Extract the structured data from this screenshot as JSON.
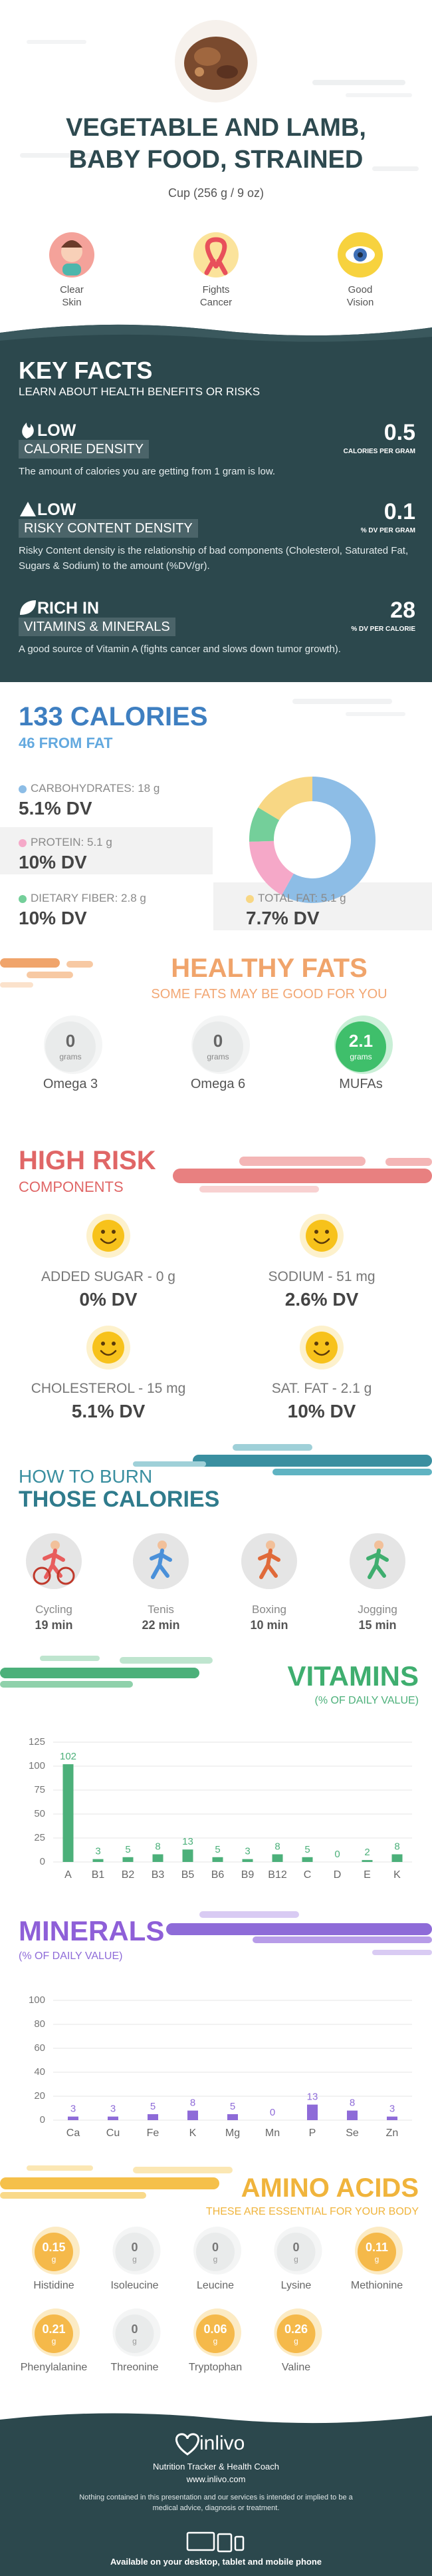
{
  "header": {
    "title": "VEGETABLE AND LAMB, BABY FOOD, STRAINED",
    "serving": "Cup (256 g / 9 oz)"
  },
  "benefits": [
    "Clear Skin",
    "Fights Cancer",
    "Good Vision"
  ],
  "key_facts": {
    "title": "KEY FACTS",
    "subtitle": "LEARN ABOUT HEALTH BENEFITS OR RISKS",
    "items": [
      {
        "level": "LOW",
        "label": "CALORIE DENSITY",
        "value": 0.5,
        "unit": "CALORIES PER GRAM",
        "description": "The amount of calories you are getting from 1 gram is low."
      },
      {
        "level": "LOW",
        "label": "RISKY CONTENT DENSITY",
        "value": 0.1,
        "unit": "% DV PER GRAM",
        "description": "Risky Content density is the relationship of bad components (Cholesterol, Saturated Fat, Sugars & Sodium) to the amount (%DV/gr)."
      },
      {
        "level": "RICH IN",
        "label": "VITAMINS & MINERALS",
        "value": 28,
        "unit": "% DV PER CALORIE",
        "description": "A good source of Vitamin A (fights cancer and slows down tumor growth)."
      }
    ]
  },
  "calories": {
    "title": "133 CALORIES",
    "subtitle": "46 FROM FAT"
  },
  "chart_data": [
    {
      "type": "pie",
      "categories": [
        "CARBOHYDRATES: 18 g",
        "PROTEIN: 5.1 g",
        "DIETARY FIBER: 2.8 g",
        "TOTAL FAT: 5.1 g"
      ],
      "values": [
        18,
        5.1,
        2.8,
        5.1
      ],
      "dv_labels": [
        "5.1% DV",
        "10% DV",
        "10% DV",
        "7.7% DV"
      ],
      "colors": [
        "#8dbde6",
        "#f5a8c8",
        "#74cf9a",
        "#f8d784"
      ]
    },
    {
      "type": "bar",
      "title": "VITAMINS",
      "subtitle": "(% OF DAILY VALUE)",
      "categories": [
        "A",
        "B1",
        "B2",
        "B3",
        "B5",
        "B6",
        "B9",
        "B12",
        "C",
        "D",
        "E",
        "K"
      ],
      "values": [
        102,
        3,
        5,
        8,
        13,
        5,
        3,
        8,
        5,
        0,
        2,
        8
      ],
      "color": "#4cb07a",
      "ylim": [
        0,
        125
      ],
      "yticks": [
        0,
        25,
        50,
        75,
        100,
        125
      ],
      "grid": true
    },
    {
      "type": "bar",
      "title": "MINERALS",
      "subtitle": "(% OF DAILY VALUE)",
      "categories": [
        "Ca",
        "Cu",
        "Fe",
        "K",
        "Mg",
        "Mn",
        "P",
        "Se",
        "Zn"
      ],
      "values": [
        3,
        3,
        5,
        8,
        5,
        0,
        13,
        8,
        3
      ],
      "color": "#8e6bd8",
      "ylim": [
        0,
        100
      ],
      "yticks": [
        0,
        20,
        40,
        60,
        80,
        100
      ],
      "grid": true
    }
  ],
  "healthy_fats": {
    "title": "HEALTHY FATS",
    "subtitle": "SOME FATS MAY BE GOOD FOR YOU",
    "unit": "grams",
    "items": [
      {
        "name": "Omega 3",
        "value": 0
      },
      {
        "name": "Omega 6",
        "value": 0
      },
      {
        "name": "MUFAs",
        "value": 2.1
      }
    ]
  },
  "high_risk": {
    "title": "HIGH RISK",
    "subtitle": "COMPONENTS",
    "items": [
      {
        "label": "ADDED SUGAR - 0 g",
        "dv": "0% DV"
      },
      {
        "label": "SODIUM - 51 mg",
        "dv": "2.6% DV"
      },
      {
        "label": "CHOLESTEROL - 15 mg",
        "dv": "5.1% DV"
      },
      {
        "label": "SAT. FAT - 2.1 g",
        "dv": "10% DV"
      }
    ]
  },
  "burn": {
    "title_line1": "HOW TO BURN",
    "title_line2": "THOSE CALORIES",
    "activities": [
      {
        "name": "Cycling",
        "time": "19 min"
      },
      {
        "name": "Tenis",
        "time": "22 min"
      },
      {
        "name": "Boxing",
        "time": "10 min"
      },
      {
        "name": "Jogging",
        "time": "15 min"
      }
    ]
  },
  "amino_acids": {
    "title": "AMINO ACIDS",
    "subtitle": "THESE ARE ESSENTIAL FOR YOUR BODY",
    "unit": "g",
    "items": [
      {
        "name": "Histidine",
        "value": 0.15
      },
      {
        "name": "Isoleucine",
        "value": 0
      },
      {
        "name": "Leucine",
        "value": 0
      },
      {
        "name": "Lysine",
        "value": 0
      },
      {
        "name": "Methionine",
        "value": 0.11
      },
      {
        "name": "Phenylalanine",
        "value": 0.21
      },
      {
        "name": "Threonine",
        "value": 0
      },
      {
        "name": "Tryptophan",
        "value": 0.06
      },
      {
        "name": "Valine",
        "value": 0.26
      }
    ]
  },
  "footer": {
    "brand": "inlivo",
    "tagline": "Nutrition Tracker & Health Coach",
    "url": "www.inlivo.com",
    "disclaimer": "Nothing contained in this presentation and our services is intended or implied to be a medical advice, diagnosis or treatment.",
    "availability": "Available on your desktop, tablet and mobile phone"
  }
}
